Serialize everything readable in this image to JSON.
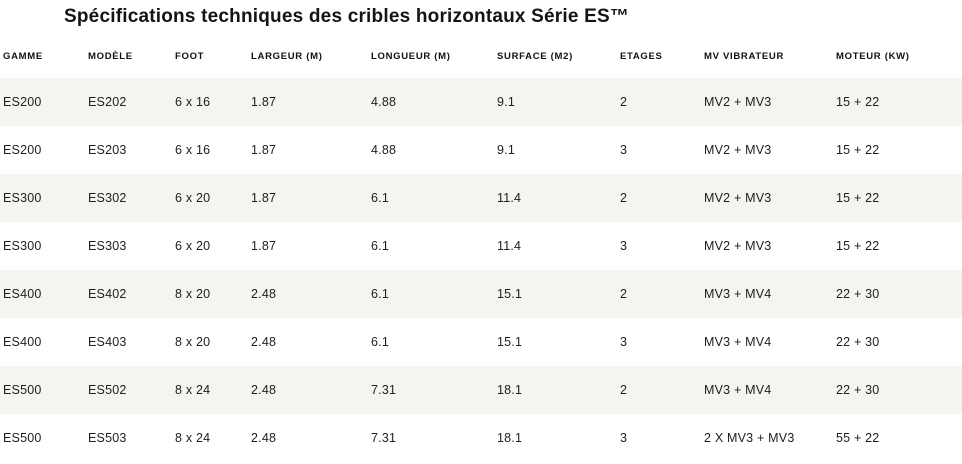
{
  "page": {
    "title": "Spécifications techniques des cribles horizontaux Série ES™"
  },
  "table": {
    "columns": [
      "GAMME",
      "MODÈLE",
      "FOOT",
      "LARGEUR (M)",
      "LONGUEUR (M)",
      "SURFACE (M2)",
      "ETAGES",
      "MV VIBRATEUR",
      "MOTEUR (KW)"
    ],
    "rows": [
      [
        "ES200",
        "ES202",
        "6 x 16",
        "1.87",
        "4.88",
        "9.1",
        "2",
        "MV2 + MV3",
        "15 + 22"
      ],
      [
        "ES200",
        "ES203",
        "6 x 16",
        "1.87",
        "4.88",
        "9.1",
        "3",
        "MV2 + MV3",
        "15 + 22"
      ],
      [
        "ES300",
        "ES302",
        "6 x 20",
        "1.87",
        "6.1",
        "11.4",
        "2",
        "MV2 + MV3",
        "15 + 22"
      ],
      [
        "ES300",
        "ES303",
        "6 x 20",
        "1.87",
        "6.1",
        "11.4",
        "3",
        "MV2 + MV3",
        "15 + 22"
      ],
      [
        "ES400",
        "ES402",
        "8 x 20",
        "2.48",
        "6.1",
        "15.1",
        "2",
        "MV3 + MV4",
        "22 + 30"
      ],
      [
        "ES400",
        "ES403",
        "8 x 20",
        "2.48",
        "6.1",
        "15.1",
        "3",
        "MV3 + MV4",
        "22 + 30"
      ],
      [
        "ES500",
        "ES502",
        "8 x 24",
        "2.48",
        "7.31",
        "18.1",
        "2",
        "MV3 + MV4",
        "22 + 30"
      ],
      [
        "ES500",
        "ES503",
        "8 x 24",
        "2.48",
        "7.31",
        "18.1",
        "3",
        "2 X MV3 + MV3",
        "55 + 22"
      ]
    ]
  },
  "colors": {
    "background": "#ffffff",
    "stripe": "#f5f4f1",
    "text": "#21201e",
    "header_text": "#111111"
  }
}
